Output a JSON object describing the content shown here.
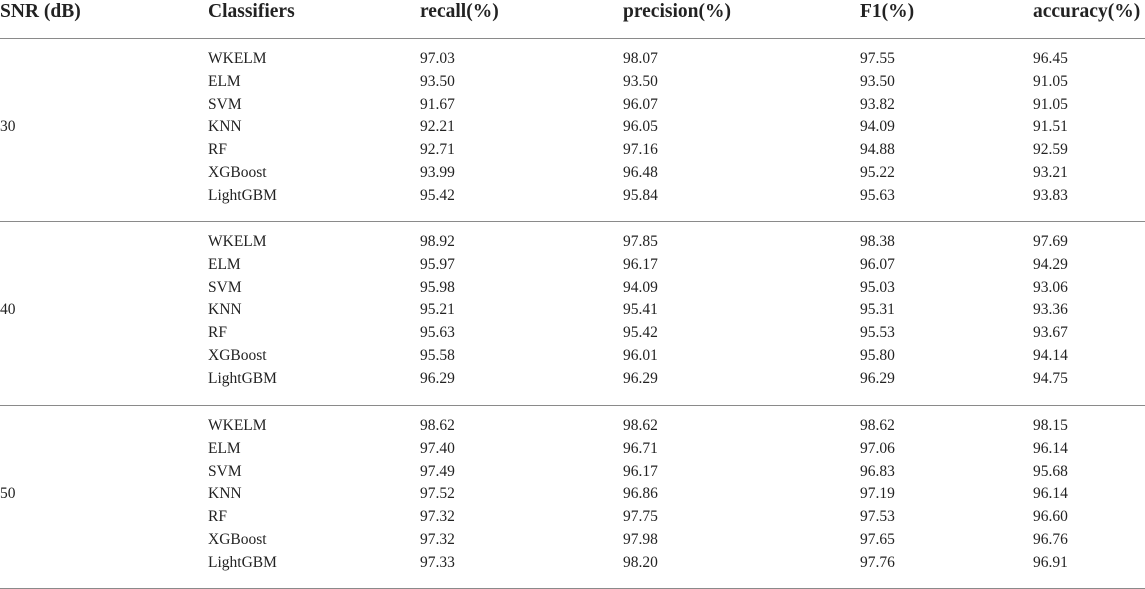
{
  "table": {
    "headers": [
      "SNR (dB)",
      "Classifiers",
      "recall(%)",
      "precision(%)",
      "F1(%)",
      "accuracy(%)"
    ],
    "groups": [
      {
        "snr": "30",
        "rows": [
          [
            "WKELM",
            "97.03",
            "98.07",
            "97.55",
            "96.45"
          ],
          [
            "ELM",
            "93.50",
            "93.50",
            "93.50",
            "91.05"
          ],
          [
            "SVM",
            "91.67",
            "96.07",
            "93.82",
            "91.05"
          ],
          [
            "KNN",
            "92.21",
            "96.05",
            "94.09",
            "91.51"
          ],
          [
            "RF",
            "92.71",
            "97.16",
            "94.88",
            "92.59"
          ],
          [
            "XGBoost",
            "93.99",
            "96.48",
            "95.22",
            "93.21"
          ],
          [
            "LightGBM",
            "95.42",
            "95.84",
            "95.63",
            "93.83"
          ]
        ]
      },
      {
        "snr": "40",
        "rows": [
          [
            "WKELM",
            "98.92",
            "97.85",
            "98.38",
            "97.69"
          ],
          [
            "ELM",
            "95.97",
            "96.17",
            "96.07",
            "94.29"
          ],
          [
            "SVM",
            "95.98",
            "94.09",
            "95.03",
            "93.06"
          ],
          [
            "KNN",
            "95.21",
            "95.41",
            "95.31",
            "93.36"
          ],
          [
            "RF",
            "95.63",
            "95.42",
            "95.53",
            "93.67"
          ],
          [
            "XGBoost",
            "95.58",
            "96.01",
            "95.80",
            "94.14"
          ],
          [
            "LightGBM",
            "96.29",
            "96.29",
            "96.29",
            "94.75"
          ]
        ]
      },
      {
        "snr": "50",
        "rows": [
          [
            "WKELM",
            "98.62",
            "98.62",
            "98.62",
            "98.15"
          ],
          [
            "ELM",
            "97.40",
            "96.71",
            "97.06",
            "96.14"
          ],
          [
            "SVM",
            "97.49",
            "96.17",
            "96.83",
            "95.68"
          ],
          [
            "KNN",
            "97.52",
            "96.86",
            "97.19",
            "96.14"
          ],
          [
            "RF",
            "97.32",
            "97.75",
            "97.53",
            "96.60"
          ],
          [
            "XGBoost",
            "97.32",
            "97.98",
            "97.65",
            "96.76"
          ],
          [
            "LightGBM",
            "97.33",
            "98.20",
            "97.76",
            "96.91"
          ]
        ]
      }
    ]
  }
}
